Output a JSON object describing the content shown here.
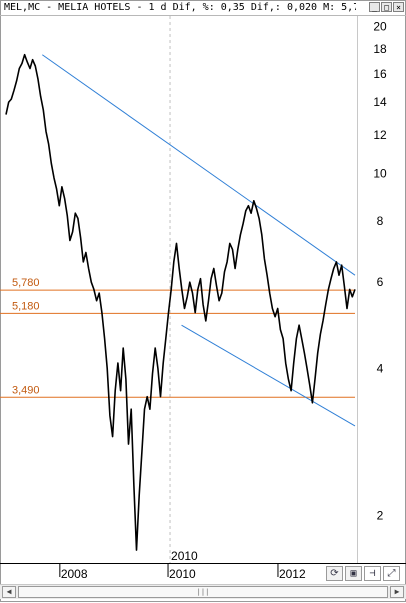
{
  "window": {
    "title": "MEL,MC - MELIA HOTELS -  1 d Dif, %: 0,35 Dif,: 0,020 M: 5,7",
    "buttons": [
      "_",
      "□",
      "×"
    ]
  },
  "chart_data": {
    "type": "line",
    "y_scale": "log",
    "ylim": [
      1.6,
      21
    ],
    "y_ticks": [
      2,
      4,
      6,
      8,
      10,
      12,
      14,
      16,
      18,
      20
    ],
    "x_tick_labels": [
      "2008",
      "2010",
      "2012"
    ],
    "crosshair_label": "2010",
    "series": [
      {
        "values": [
          13.2,
          14.0,
          14.2,
          14.8,
          15.5,
          16.4,
          16.8,
          17.5,
          16.9,
          16.4,
          17.1,
          16.6,
          15.6,
          14.4,
          13.5,
          12.2,
          11.5,
          10.5,
          9.8,
          9.3,
          8.6,
          9.4,
          8.9,
          8.2,
          7.3,
          7.6,
          8.3,
          8.1,
          7.4,
          6.6,
          6.9,
          6.4,
          6.0,
          5.8,
          5.5,
          5.7,
          5.2,
          4.6,
          4.0,
          3.2,
          2.9,
          3.6,
          4.1,
          3.6,
          4.4,
          3.8,
          2.8,
          3.3,
          2.3,
          1.7,
          2.2,
          2.7,
          3.3,
          3.5,
          3.3,
          3.9,
          4.4,
          4.0,
          3.5,
          4.1,
          4.6,
          5.2,
          5.8,
          6.6,
          7.2,
          6.4,
          5.8,
          5.3,
          5.6,
          6.0,
          5.7,
          5.2,
          5.8,
          6.1,
          5.4,
          5.0,
          5.5,
          6.1,
          6.4,
          5.9,
          5.5,
          5.7,
          6.3,
          6.6,
          7.2,
          7.0,
          6.4,
          7.0,
          7.5,
          7.9,
          8.4,
          8.6,
          8.3,
          8.8,
          8.5,
          8.1,
          7.5,
          6.7,
          6.2,
          5.7,
          5.3,
          5.1,
          5.3,
          4.8,
          4.6,
          4.1,
          3.8,
          3.6,
          4.1,
          4.6,
          4.9,
          4.6,
          4.3,
          4.0,
          3.7,
          3.4,
          3.8,
          4.3,
          4.7,
          5.0,
          5.4,
          5.8,
          6.1,
          6.4,
          6.6,
          6.2,
          6.5,
          5.9,
          5.3,
          5.8,
          5.6,
          5.8
        ]
      }
    ],
    "reference_lines": [
      {
        "label": "5,780",
        "value": 5.78,
        "color": "#e07020"
      },
      {
        "label": "5,180",
        "value": 5.18,
        "color": "#e07020"
      },
      {
        "label": "3,490",
        "value": 3.49,
        "color": "#e07020"
      }
    ],
    "trend_lines": [
      {
        "name": "upper",
        "from": {
          "t": 0.104,
          "y": 17.5
        },
        "to": {
          "t": 1.0,
          "y": 6.2
        },
        "color": "#2f7fd6"
      },
      {
        "name": "lower",
        "from": {
          "t": 0.503,
          "y": 4.9
        },
        "to": {
          "t": 1.0,
          "y": 3.05
        },
        "color": "#2f7fd6"
      }
    ],
    "colors": {
      "price": "#000000",
      "grid": "#c0c0c0",
      "reference": "#e07020",
      "trend": "#2f7fd6"
    }
  },
  "toolbar": [
    {
      "icon": "refresh-icon",
      "glyph": "⟳"
    },
    {
      "icon": "save-icon",
      "glyph": "▣"
    },
    {
      "icon": "pin-icon",
      "glyph": "⊣"
    },
    {
      "icon": "expand-icon",
      "glyph": "⤢"
    }
  ],
  "scrollbar": {
    "left_arrow": "◀",
    "right_arrow": "▶",
    "thumb_grip": "|||"
  }
}
